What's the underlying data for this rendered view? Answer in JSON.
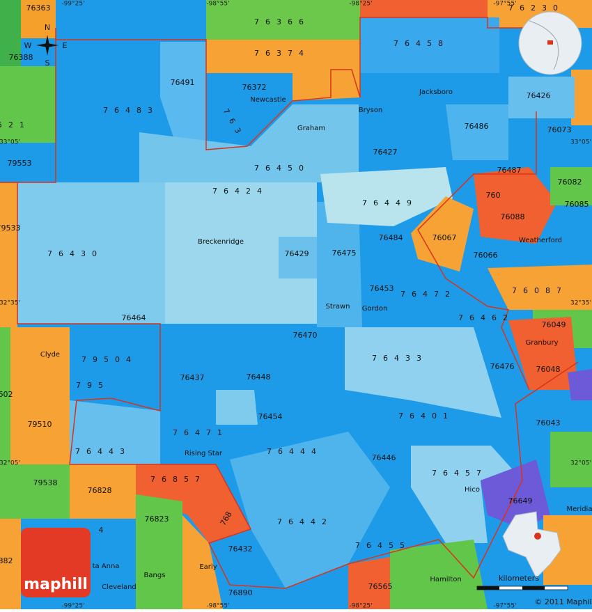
{
  "zip_labels": [
    "76363",
    "76366",
    "76230",
    "76388",
    "76374",
    "76458",
    "76491",
    "76372",
    "76483",
    "76426",
    "521",
    "763",
    "76486",
    "76073",
    "79553",
    "76427",
    "76450",
    "76487",
    "76082",
    "76424",
    "76449",
    "760",
    "76085",
    "79533",
    "76088",
    "76484",
    "76067",
    "76430",
    "76429",
    "76475",
    "76066",
    "76087",
    "76453",
    "76472",
    "76464",
    "76462",
    "76049",
    "76470",
    "79504",
    "76433",
    "76476",
    "76437",
    "76448",
    "795",
    "76048",
    "602",
    "79510",
    "76454",
    "76401",
    "76043",
    "76471",
    "76443",
    "76444",
    "76446",
    "76457",
    "79538",
    "76857",
    "76828",
    "76649",
    "76823",
    "768",
    "76442",
    "76432",
    "76455",
    "76565",
    "76890",
    "882",
    "4"
  ],
  "place_labels": [
    "Newcastle",
    "Jacksboro",
    "Bryson",
    "Graham",
    "Breckenridge",
    "Weatherford",
    "Strawn",
    "Gordon",
    "Clyde",
    "Granbury",
    "Rising Star",
    "Hico",
    "Meridia",
    "ta Anna",
    "Bangs",
    "Early",
    "Cleveland",
    "Hamilton"
  ],
  "coordinate_labels": [
    "-99°25'",
    "-98°55'",
    "-98°25'",
    "-97°55'",
    "33°05'",
    "33°05'",
    "32°35'",
    "32°35'",
    "32°05'",
    "32°05'",
    "-99°25'",
    "-98°55'",
    "-98°25'",
    "-97°55'"
  ],
  "compass": [
    "N",
    "E",
    "S",
    "W"
  ],
  "scale_label": "kilometers",
  "copyright": "© 2011 Maphill",
  "brand": "maphill"
}
